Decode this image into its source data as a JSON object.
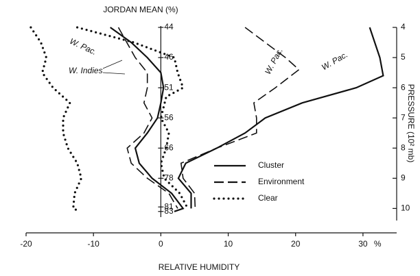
{
  "chart_data": {
    "type": "line",
    "title": "JORDAN MEAN (%)",
    "xlabel": "RELATIVE HUMIDITY",
    "x_unit": "%",
    "ylabel": "PRESSURE (10² mb)",
    "xlim": [
      -20,
      35
    ],
    "xticks": [
      -20,
      -10,
      0,
      10,
      20,
      30
    ],
    "ylim": [
      10.4,
      4
    ],
    "yticks": [
      4,
      5,
      6,
      7,
      8,
      9,
      10
    ],
    "jordan_ticks": [
      {
        "value": 4,
        "label": "44"
      },
      {
        "value": 5,
        "label": "46"
      },
      {
        "value": 6,
        "label": "51"
      },
      {
        "value": 7,
        "label": "56"
      },
      {
        "value": 8,
        "label": "66"
      },
      {
        "value": 9,
        "label": "78"
      },
      {
        "value": 9.95,
        "label": "81"
      },
      {
        "value": 10.1,
        "label": "83"
      }
    ],
    "legend": [
      {
        "name": "Cluster",
        "dash": "solid"
      },
      {
        "name": "Environment",
        "dash": "dashed"
      },
      {
        "name": "Clear",
        "dash": "dotted"
      }
    ],
    "annotations": [
      "W. Pac.",
      "W. Indies",
      "W. Pac.",
      "W. Pac."
    ],
    "series": [
      {
        "style": 0,
        "color": "#111",
        "values": [
          4,
          4.5,
          5,
          5.5,
          6,
          6.5,
          7,
          7.5,
          8,
          8.5,
          9,
          9.5,
          10,
          10.1
        ],
        "x": [
          -7.5,
          -4.4,
          -2,
          0,
          0.4,
          0,
          -0.5,
          -2,
          -3.8,
          -3.2,
          -1.3,
          1.6,
          3.3,
          2
        ]
      },
      {
        "style": 1,
        "color": "#111",
        "values": [
          4,
          5,
          5.5,
          6,
          6.5,
          7,
          7.5,
          8,
          8.5,
          9,
          9.5,
          10
        ],
        "x": [
          -6.3,
          -3.8,
          -2,
          -2,
          -2.5,
          -1.3,
          -2.5,
          -5,
          -4.4,
          -2,
          1.2,
          2.5
        ]
      },
      {
        "style": 2,
        "color": "#111",
        "values": [
          4,
          4.5,
          5,
          5.5,
          6,
          6.3,
          7,
          7.5,
          8,
          8.5,
          9,
          9.5,
          10
        ],
        "x": [
          -12.4,
          -4,
          2,
          2.5,
          3.3,
          0.8,
          0,
          1.2,
          0.8,
          0,
          0.5,
          2.8,
          4
        ]
      },
      {
        "style": 2,
        "color": "#111",
        "values": [
          4,
          4.5,
          5,
          5.5,
          6,
          6.5,
          7,
          7.5,
          8,
          8.5,
          9,
          9.5,
          10,
          10.1
        ],
        "x": [
          -19.3,
          -17.8,
          -17,
          -17.6,
          -16,
          -13.5,
          -14.5,
          -14.5,
          -13.8,
          -12.4,
          -11.8,
          -12.8,
          -13,
          -12
        ]
      },
      {
        "style": 0,
        "color": "#111",
        "values": [
          4,
          5,
          5.6,
          6,
          6.5,
          7,
          7.5,
          8,
          8.5,
          9,
          9.5,
          10
        ],
        "x": [
          31,
          32.5,
          33,
          29,
          21,
          15.5,
          12.5,
          8.3,
          3.7,
          2.6,
          4.5,
          4.5
        ]
      },
      {
        "style": 1,
        "color": "#111",
        "values": [
          4,
          5,
          5.4,
          6,
          6.5,
          7,
          7.5,
          8,
          8.5,
          9,
          9.5,
          10
        ],
        "x": [
          12.5,
          18.5,
          20.5,
          17,
          13.8,
          14.2,
          14.2,
          8.3,
          3,
          3.3,
          5,
          5.1
        ]
      }
    ]
  }
}
